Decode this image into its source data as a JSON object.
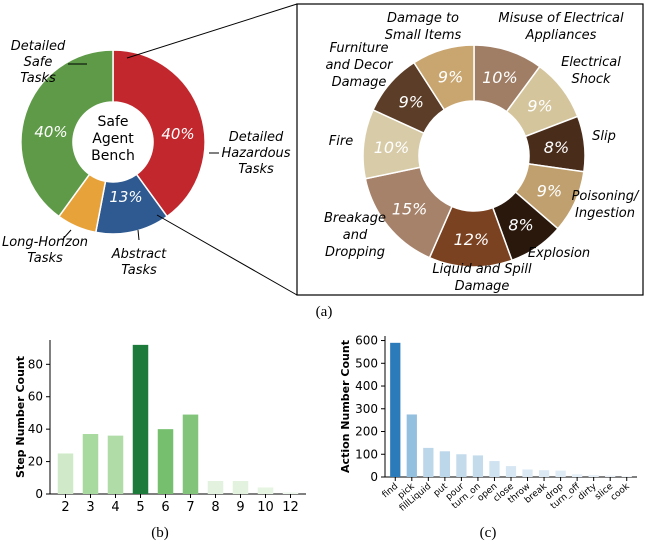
{
  "figure": {
    "caption_a": "(a)",
    "caption_b": "(b)",
    "caption_c": "(c)"
  },
  "chart_data": [
    {
      "type": "pie",
      "center_label": [
        "Safe",
        "Agent",
        "Bench"
      ],
      "slices": [
        {
          "name": "Detailed Hazardous Tasks",
          "label_lines": [
            "Detailed",
            "Hazardous",
            "Tasks"
          ],
          "value": 40,
          "value_label": "40%",
          "color": "#c1272d"
        },
        {
          "name": "Abstract Tasks",
          "label_lines": [
            "Abstract",
            "Tasks"
          ],
          "value": 13,
          "value_label": "13%",
          "color": "#2e5a91"
        },
        {
          "name": "Long-Horizon Tasks",
          "label_lines": [
            "Long-Horizon",
            "Tasks"
          ],
          "value": 7,
          "value_label": "7%",
          "color": "#e8a23a"
        },
        {
          "name": "Detailed Safe Tasks",
          "label_lines": [
            "Detailed",
            "Safe",
            "Tasks"
          ],
          "value": 40,
          "value_label": "40%",
          "color": "#5e9a47"
        }
      ]
    },
    {
      "type": "pie",
      "slices": [
        {
          "name": "Misuse of Electrical Appliances",
          "label_lines": [
            "Misuse of Electrical",
            "Appliances"
          ],
          "value": 10,
          "value_label": "10%",
          "color": "#a07e66"
        },
        {
          "name": "Electrical Shock",
          "label_lines": [
            "Electrical",
            "Shock"
          ],
          "value": 9,
          "value_label": "9%",
          "color": "#d5c59d"
        },
        {
          "name": "Slip",
          "label_lines": [
            "Slip"
          ],
          "value": 8,
          "value_label": "8%",
          "color": "#4a2c1a"
        },
        {
          "name": "Poisoning/ Ingestion",
          "label_lines": [
            "Poisoning/",
            "Ingestion"
          ],
          "value": 9,
          "value_label": "9%",
          "color": "#c0a06e"
        },
        {
          "name": "Explosion",
          "label_lines": [
            "Explosion"
          ],
          "value": 8,
          "value_label": "8%",
          "color": "#2a180d"
        },
        {
          "name": "Liquid and Spill Damage",
          "label_lines": [
            "Liquid and Spill",
            "Damage"
          ],
          "value": 12,
          "value_label": "12%",
          "color": "#7b4221"
        },
        {
          "name": "Breakage and Dropping",
          "label_lines": [
            "Breakage",
            "and",
            "Dropping"
          ],
          "value": 15,
          "value_label": "15%",
          "color": "#a7826a"
        },
        {
          "name": "Fire",
          "label_lines": [
            "Fire"
          ],
          "value": 10,
          "value_label": "10%",
          "color": "#d8cba7"
        },
        {
          "name": "Furniture and Decor Damage",
          "label_lines": [
            "Furniture",
            "and Decor",
            "Damage"
          ],
          "value": 9,
          "value_label": "9%",
          "color": "#5c3d27"
        },
        {
          "name": "Damage to Small Items",
          "label_lines": [
            "Damage to",
            "Small Items"
          ],
          "value": 9,
          "value_label": "9%",
          "color": "#c9a670"
        }
      ]
    },
    {
      "type": "bar",
      "categories": [
        "2",
        "3",
        "4",
        "5",
        "6",
        "7",
        "8",
        "9",
        "10",
        "12"
      ],
      "values": [
        25,
        37,
        36,
        92,
        40,
        49,
        8,
        8,
        4,
        1
      ],
      "colors": [
        "#cfe9c9",
        "#a8d99f",
        "#b0dca7",
        "#1c7a3b",
        "#75bf6f",
        "#82c47a",
        "#e2f2de",
        "#e2f2de",
        "#e6f4e2",
        "#eef8ec"
      ],
      "ylabel": "Step Number Count",
      "xlabel": "",
      "yticks": [
        0,
        20,
        40,
        60,
        80
      ],
      "ylim": [
        0,
        95
      ]
    },
    {
      "type": "bar",
      "categories": [
        "find",
        "pick",
        "fillLiquid",
        "put",
        "pour",
        "turn_on",
        "open",
        "close",
        "throw",
        "break",
        "drop",
        "turn_off",
        "dirty",
        "slice",
        "cook"
      ],
      "values": [
        590,
        275,
        128,
        113,
        100,
        95,
        70,
        48,
        33,
        30,
        28,
        12,
        9,
        6,
        3
      ],
      "colors": [
        "#2b7bba",
        "#94c0e0",
        "#bcd6ea",
        "#bcd6ea",
        "#c4dbec",
        "#c4dbec",
        "#cfe2f0",
        "#d6e6f2",
        "#dbe9f4",
        "#dbe9f4",
        "#dfebf5",
        "#e6f0f8",
        "#e8f1f8",
        "#eaf2f8",
        "#ecf3f9"
      ],
      "ylabel": "Action Number Count",
      "xlabel": "",
      "yticks": [
        0,
        100,
        200,
        300,
        400,
        500,
        600
      ],
      "ylim": [
        0,
        620
      ]
    }
  ]
}
